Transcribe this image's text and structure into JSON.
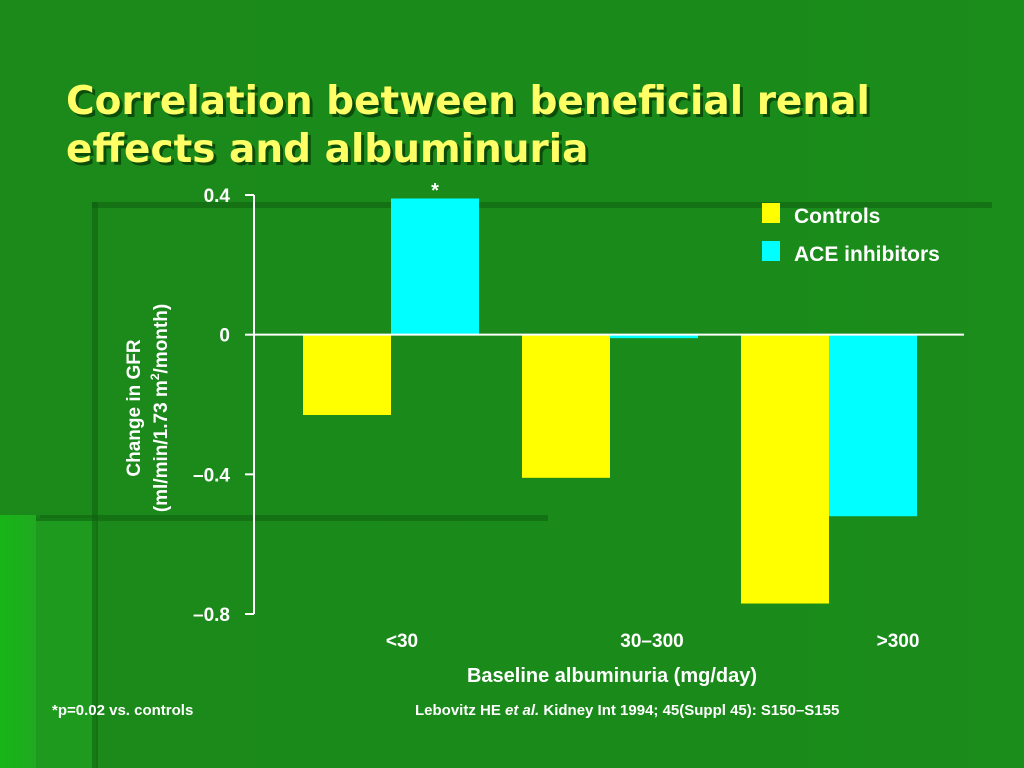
{
  "title_line1": "Correlation between beneficial renal",
  "title_line2": "effects and albuminuria",
  "colors": {
    "controls": "#ffff00",
    "ace": "#00ffff",
    "axis": "#ffffff",
    "title": "#ffff66"
  },
  "chart_data": {
    "type": "bar",
    "categories": [
      "<30",
      "30–300",
      ">300"
    ],
    "series": [
      {
        "name": "Controls",
        "values": [
          -0.23,
          -0.41,
          -0.77
        ]
      },
      {
        "name": "ACE inhibitors",
        "values": [
          0.39,
          -0.01,
          -0.52
        ]
      }
    ],
    "ylim": [
      -0.8,
      0.4
    ],
    "yticks": [
      {
        "value": 0.4,
        "label": "0.4"
      },
      {
        "value": 0,
        "label": "0"
      },
      {
        "value": -0.4,
        "label": "–0.4"
      },
      {
        "value": -0.8,
        "label": "–0.8"
      }
    ],
    "xlabel": "Baseline albuminuria (mg/day)",
    "ylabel_line1": "Change in GFR",
    "ylabel_line2_pre": "(ml/min/1.73 m",
    "ylabel_line2_sup": "2",
    "ylabel_line2_post": "/month)",
    "significance_marker": "*",
    "legend_position": "top-right"
  },
  "footnote": "*p=0.02 vs. controls",
  "citation_pre": "Lebovitz HE ",
  "citation_em": "et al.",
  "citation_post": " Kidney Int 1994; 45(Suppl 45): S150–S155"
}
